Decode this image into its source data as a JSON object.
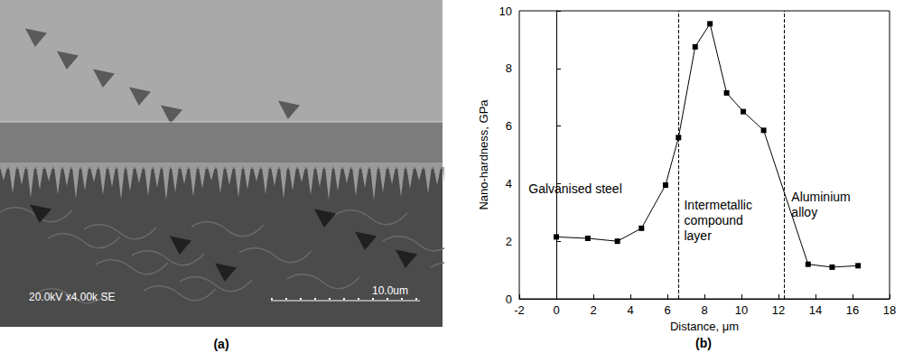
{
  "chart_data": {
    "type": "line",
    "caption": "(b)",
    "x_label": "Distance, μm",
    "y_label": "Nano-hardness, GPa",
    "x": [
      0,
      1.7,
      3.3,
      4.6,
      5.9,
      6.6,
      7.5,
      8.3,
      9.2,
      10.1,
      11.2,
      13.6,
      14.9,
      16.3
    ],
    "values": [
      2.15,
      2.1,
      2.0,
      2.45,
      3.95,
      5.6,
      8.75,
      9.55,
      7.15,
      6.5,
      5.85,
      1.2,
      1.1,
      1.15
    ],
    "color": "#000000",
    "marker": "square",
    "line_style": "solid",
    "xlim": [
      -2,
      18
    ],
    "xticks": [
      -2,
      0,
      2,
      4,
      6,
      8,
      10,
      12,
      14,
      16,
      18
    ],
    "ylim": [
      0,
      10
    ],
    "yticks": [
      0,
      2,
      4,
      6,
      8,
      10
    ],
    "grid": false,
    "boundaries": [
      6.6,
      12.3
    ],
    "annotations": [
      {
        "text": "Galvanised steel",
        "x": -1.5,
        "y": 3.8
      },
      {
        "text": "Intermetallic compound layer",
        "x": 6.9,
        "y": 2.7
      },
      {
        "text": "Aluminium alloy",
        "x": 12.7,
        "y": 3.25
      }
    ]
  },
  "micrograph": {
    "caption": "(a)",
    "info": "20.0kV x4.00k SE",
    "scale_bar": "10.0um"
  }
}
